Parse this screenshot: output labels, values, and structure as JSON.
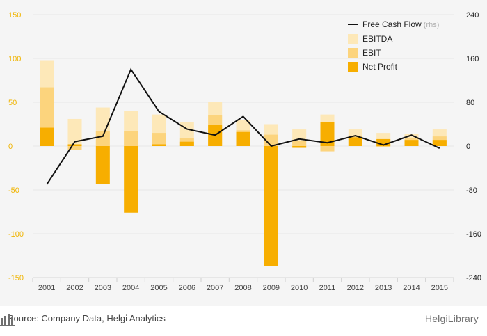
{
  "chart_data": {
    "type": "bar",
    "categories": [
      "2001",
      "2002",
      "2003",
      "2004",
      "2005",
      "2006",
      "2007",
      "2008",
      "2009",
      "2010",
      "2011",
      "2012",
      "2013",
      "2014",
      "2015"
    ],
    "series": [
      {
        "name": "EBITDA",
        "values": [
          98,
          31,
          44,
          40,
          36,
          27,
          50,
          30,
          25,
          19,
          36,
          19,
          15,
          14,
          19
        ]
      },
      {
        "name": "EBIT",
        "values": [
          67,
          -4,
          17,
          17,
          15,
          9,
          35,
          18,
          13,
          6,
          -6,
          12,
          -1,
          9,
          11
        ]
      },
      {
        "name": "Net Profit",
        "values": [
          21,
          2,
          -43,
          -76,
          2,
          5,
          24,
          16,
          -137,
          -2,
          27,
          10,
          8,
          7,
          7
        ]
      },
      {
        "name": "Free Cash Flow",
        "axis": "rhs",
        "values": [
          -70,
          8,
          18,
          140,
          63,
          31,
          20,
          54,
          0,
          13,
          6,
          19,
          2,
          20,
          -4
        ]
      }
    ],
    "left_axis": {
      "ylim": [
        -150,
        150
      ],
      "ticks": [
        "150",
        "100",
        "50",
        "0",
        "-50",
        "-100",
        "-150"
      ]
    },
    "right_axis": {
      "ylim": [
        -240,
        240
      ],
      "ticks": [
        "240",
        "160",
        "80",
        "0",
        "-80",
        "-160",
        "-240"
      ]
    },
    "legend": {
      "position": "top-right",
      "items": [
        {
          "label": "Free Cash Flow",
          "suffix": "(rhs)"
        },
        {
          "label": "EBITDA"
        },
        {
          "label": "EBIT"
        },
        {
          "label": "Net Profit"
        }
      ]
    },
    "colors": {
      "ebitda": "#fde8b8",
      "ebit": "#fcd47d",
      "net_profit": "#f7ae00",
      "free_cash_flow": "#111111",
      "axis_text": "#f0b400",
      "grid": "#e7e7e7",
      "tick_text": "#444444"
    },
    "grid": true
  },
  "footer": {
    "source": "Source: Company Data, Helgi Analytics",
    "brand": "HelgiLibrary"
  }
}
